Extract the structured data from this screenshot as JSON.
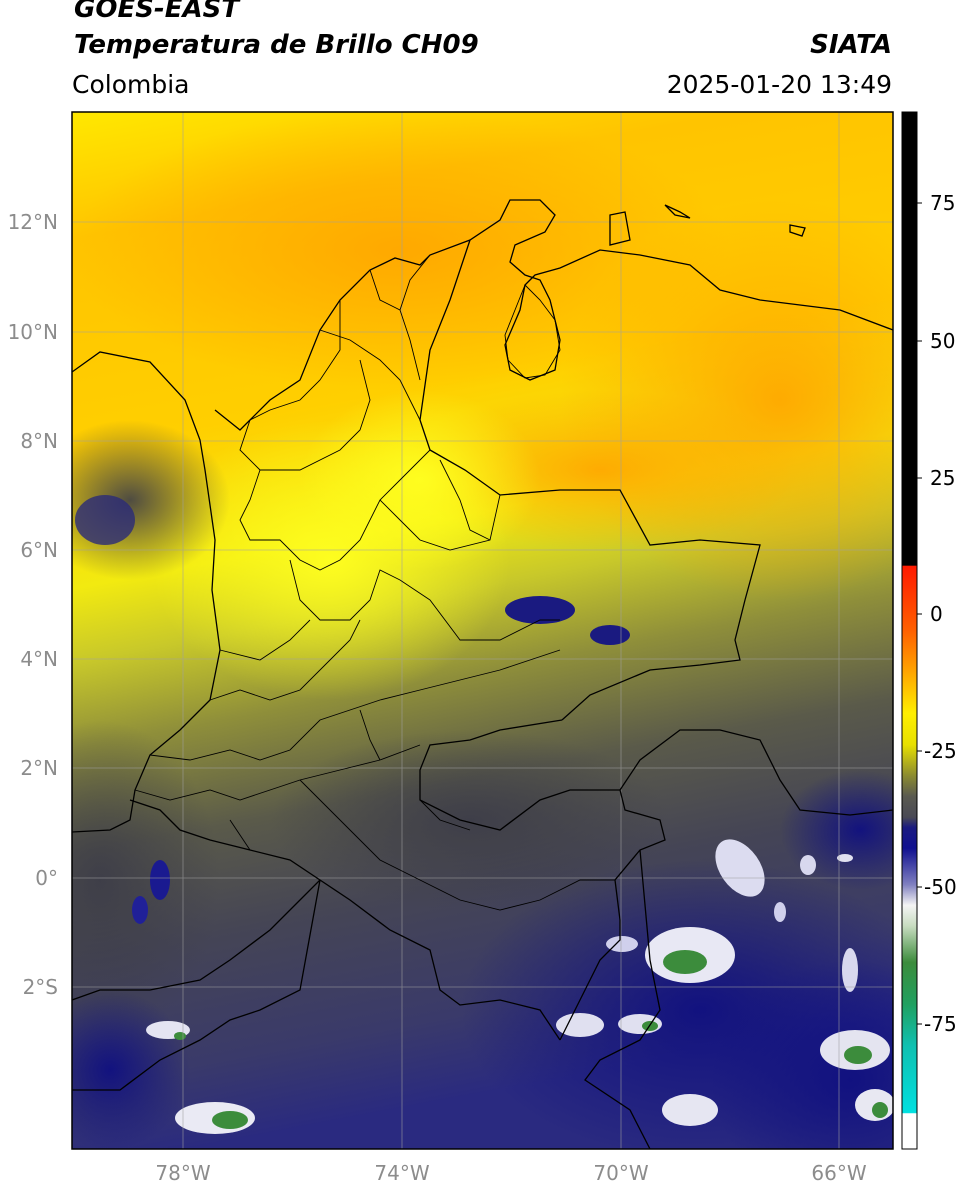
{
  "header": {
    "satellite": "GOES-EAST",
    "product": "Temperatura de Brillo CH09",
    "region": "Colombia",
    "brand": "SIATA",
    "timestamp": "2025-01-20 13:49"
  },
  "map": {
    "lat_labels": [
      "12°N",
      "10°N",
      "8°N",
      "6°N",
      "4°N",
      "2°N",
      "0°",
      "2°S"
    ],
    "lon_labels": [
      "78°W",
      "74°W",
      "70°W",
      "66°W"
    ]
  },
  "colorbar": {
    "ticks": [
      "75",
      "50",
      "25",
      "0",
      "-25",
      "-50",
      "-75"
    ],
    "colors": {
      "positive": "#000000",
      "warm": "#ff1a00",
      "orange": "#ffa500",
      "yellow": "#ffef00",
      "olive": "#8b8b30",
      "gray": "#4a4a55",
      "navy": "#1a1a80",
      "white": "#f4f4f4",
      "green": "#3c8c3c",
      "cyan": "#00e0e0"
    }
  }
}
